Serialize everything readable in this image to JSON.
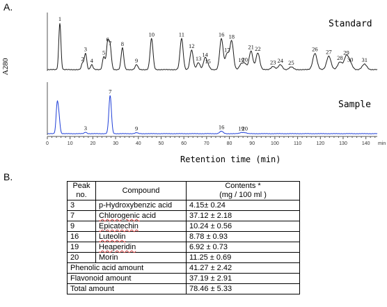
{
  "panel_a_label": "A.",
  "panel_b_label": "B.",
  "colors": {
    "standard_trace": "#1a1a1a",
    "sample_trace": "#1f3fd8",
    "axis": "#555555"
  },
  "chart_data": {
    "type": "line",
    "xlabel": "Retention time (min)",
    "ylabel": "A280",
    "xlim": [
      0,
      145
    ],
    "x_ticks": [
      0,
      10,
      20,
      30,
      40,
      50,
      60,
      70,
      80,
      90,
      100,
      110,
      120,
      130,
      140
    ],
    "x_unit_label": "min",
    "series": [
      {
        "name": "Standard",
        "peaks": [
          {
            "label": "1",
            "rt": 5.5,
            "height": 0.86
          },
          {
            "label": "2",
            "rt": 15.5,
            "height": 0.12
          },
          {
            "label": "3",
            "rt": 16.8,
            "height": 0.3
          },
          {
            "label": "4",
            "rt": 19.5,
            "height": 0.09
          },
          {
            "label": "5",
            "rt": 24.8,
            "height": 0.24
          },
          {
            "label": "6",
            "rt": 26.5,
            "height": 0.48
          },
          {
            "label": "7",
            "rt": 27.6,
            "height": 0.41
          },
          {
            "label": "8",
            "rt": 33.0,
            "height": 0.4
          },
          {
            "label": "9",
            "rt": 39.2,
            "height": 0.09
          },
          {
            "label": "10",
            "rt": 45.8,
            "height": 0.57
          },
          {
            "label": "11",
            "rt": 59.0,
            "height": 0.57
          },
          {
            "label": "12",
            "rt": 63.4,
            "height": 0.36
          },
          {
            "label": "13",
            "rt": 66.4,
            "height": 0.13
          },
          {
            "label": "14",
            "rt": 69.3,
            "height": 0.2
          },
          {
            "label": "15",
            "rt": 70.5,
            "height": 0.08
          },
          {
            "label": "16",
            "rt": 76.5,
            "height": 0.57
          },
          {
            "label": "17",
            "rt": 79.0,
            "height": 0.29
          },
          {
            "label": "18",
            "rt": 81.0,
            "height": 0.53
          },
          {
            "label": "19",
            "rt": 85.2,
            "height": 0.1
          },
          {
            "label": "20",
            "rt": 86.8,
            "height": 0.11
          },
          {
            "label": "21",
            "rt": 89.5,
            "height": 0.34
          },
          {
            "label": "22",
            "rt": 92.5,
            "height": 0.31
          },
          {
            "label": "23",
            "rt": 99.2,
            "height": 0.06
          },
          {
            "label": "24",
            "rt": 102.4,
            "height": 0.09
          },
          {
            "label": "25",
            "rt": 107.2,
            "height": 0.05
          },
          {
            "label": "26",
            "rt": 117.6,
            "height": 0.3
          },
          {
            "label": "27",
            "rt": 123.7,
            "height": 0.25
          },
          {
            "label": "28",
            "rt": 128.6,
            "height": 0.14
          },
          {
            "label": "29",
            "rt": 131.4,
            "height": 0.24
          },
          {
            "label": "30",
            "rt": 133.1,
            "height": 0.11
          },
          {
            "label": "31",
            "rt": 139.4,
            "height": 0.1
          }
        ]
      },
      {
        "name": "Sample",
        "peaks": [
          {
            "label": "",
            "rt": 4.3,
            "height": 0.58
          },
          {
            "label": "",
            "rt": 5.1,
            "height": 0.32
          },
          {
            "label": "3",
            "rt": 16.8,
            "height": 0.03
          },
          {
            "label": "7",
            "rt": 27.6,
            "height": 0.78
          },
          {
            "label": "9",
            "rt": 39.2,
            "height": 0.02
          },
          {
            "label": "16",
            "rt": 76.5,
            "height": 0.05
          },
          {
            "label": "19",
            "rt": 85.2,
            "height": 0.02
          },
          {
            "label": "20",
            "rt": 86.8,
            "height": 0.02
          }
        ]
      }
    ]
  },
  "table": {
    "headers": {
      "peak": "Peak no.",
      "compound": "Compound",
      "contents": "Contents *",
      "contents_unit": "(mg / 100 ml )"
    },
    "rows": [
      {
        "peak": "3",
        "compound": "p-Hydroxybenzic acid",
        "contents": "4.15± 0.24"
      },
      {
        "peak": "7",
        "compound": "Chlorogenic acid",
        "contents": "37.12 ± 2.18"
      },
      {
        "peak": "9",
        "compound": "Epicatechin",
        "contents": "10.24 ± 0.56"
      },
      {
        "peak": "16",
        "compound": "Luteolin",
        "contents": "8.78 ± 0.93"
      },
      {
        "peak": "19",
        "compound": "Heaperidin",
        "contents": "6.92 ± 0.73"
      },
      {
        "peak": "20",
        "compound": "Morin",
        "contents": "11.25 ± 0.69"
      }
    ],
    "summary": [
      {
        "label": "Phenolic acid amount",
        "value": "41.27 ± 2.42"
      },
      {
        "label": "Flavonoid amount",
        "value": "37.19 ± 2.91"
      },
      {
        "label": "Total amount",
        "value": "78.46 ± 5.33"
      }
    ]
  }
}
